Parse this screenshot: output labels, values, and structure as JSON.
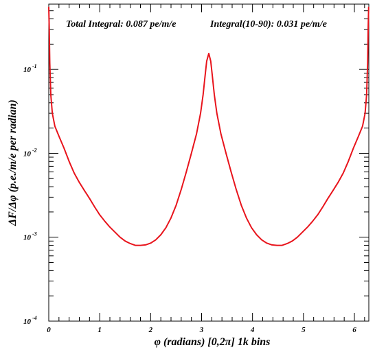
{
  "chart_data": {
    "type": "line",
    "annotations": {
      "total_integral": "Total Integral: 0.087 pe/m/e",
      "integral_10_90": "Integral(10-90): 0.031 pe/m/e"
    },
    "xlabel": "φ (radians) [0,2π] 1k bins",
    "ylabel": "ΔF/Δφ (p.e./m/e per radian)",
    "xlim": [
      0,
      6.2832
    ],
    "ylim": [
      0.0001,
      0.6
    ],
    "yscale": "log",
    "x_ticks": [
      {
        "value": 0,
        "label": "0"
      },
      {
        "value": 1,
        "label": "1"
      },
      {
        "value": 2,
        "label": "2"
      },
      {
        "value": 3,
        "label": "3"
      },
      {
        "value": 4,
        "label": "4"
      },
      {
        "value": 5,
        "label": "5"
      },
      {
        "value": 6,
        "label": "6"
      }
    ],
    "y_ticks": [
      {
        "value": 0.0001,
        "base": "10",
        "exp": "-4"
      },
      {
        "value": 0.001,
        "base": "10",
        "exp": "-3"
      },
      {
        "value": 0.01,
        "base": "10",
        "exp": "-2"
      },
      {
        "value": 0.1,
        "base": "10",
        "exp": "-1"
      }
    ],
    "grid": false,
    "colors": {
      "line": "#e8141c",
      "frame": "#000000"
    },
    "series": [
      {
        "points": [
          [
            0.0,
            0.55
          ],
          [
            0.01,
            0.3
          ],
          [
            0.02,
            0.12
          ],
          [
            0.04,
            0.05
          ],
          [
            0.07,
            0.03
          ],
          [
            0.12,
            0.021
          ],
          [
            0.2,
            0.016
          ],
          [
            0.3,
            0.0115
          ],
          [
            0.4,
            0.008
          ],
          [
            0.5,
            0.0058
          ],
          [
            0.6,
            0.0045
          ],
          [
            0.7,
            0.0036
          ],
          [
            0.8,
            0.0029
          ],
          [
            0.9,
            0.0023
          ],
          [
            1.0,
            0.00185
          ],
          [
            1.1,
            0.00155
          ],
          [
            1.2,
            0.00132
          ],
          [
            1.3,
            0.00115
          ],
          [
            1.4,
            0.001
          ],
          [
            1.5,
            0.0009
          ],
          [
            1.6,
            0.00084
          ],
          [
            1.7,
            0.0008
          ],
          [
            1.8,
            0.0008
          ],
          [
            1.9,
            0.00081
          ],
          [
            2.0,
            0.00085
          ],
          [
            2.1,
            0.00093
          ],
          [
            2.2,
            0.00107
          ],
          [
            2.3,
            0.0013
          ],
          [
            2.4,
            0.0017
          ],
          [
            2.5,
            0.0024
          ],
          [
            2.6,
            0.0037
          ],
          [
            2.7,
            0.006
          ],
          [
            2.8,
            0.01
          ],
          [
            2.9,
            0.017
          ],
          [
            2.98,
            0.03
          ],
          [
            3.03,
            0.05
          ],
          [
            3.07,
            0.085
          ],
          [
            3.1,
            0.125
          ],
          [
            3.1416,
            0.155
          ],
          [
            3.18,
            0.125
          ],
          [
            3.21,
            0.085
          ],
          [
            3.25,
            0.05
          ],
          [
            3.3,
            0.03
          ],
          [
            3.38,
            0.017
          ],
          [
            3.48,
            0.01
          ],
          [
            3.58,
            0.006
          ],
          [
            3.68,
            0.0037
          ],
          [
            3.78,
            0.0024
          ],
          [
            3.88,
            0.0017
          ],
          [
            3.98,
            0.0013
          ],
          [
            4.08,
            0.00107
          ],
          [
            4.18,
            0.00093
          ],
          [
            4.28,
            0.00085
          ],
          [
            4.38,
            0.00081
          ],
          [
            4.48,
            0.0008
          ],
          [
            4.58,
            0.0008
          ],
          [
            4.68,
            0.00084
          ],
          [
            4.78,
            0.0009
          ],
          [
            4.88,
            0.001
          ],
          [
            4.98,
            0.00115
          ],
          [
            5.08,
            0.00132
          ],
          [
            5.18,
            0.00155
          ],
          [
            5.28,
            0.00185
          ],
          [
            5.38,
            0.0023
          ],
          [
            5.48,
            0.0029
          ],
          [
            5.58,
            0.0036
          ],
          [
            5.68,
            0.0045
          ],
          [
            5.78,
            0.0058
          ],
          [
            5.88,
            0.008
          ],
          [
            5.98,
            0.0115
          ],
          [
            6.08,
            0.016
          ],
          [
            6.16,
            0.021
          ],
          [
            6.21,
            0.03
          ],
          [
            6.24,
            0.05
          ],
          [
            6.26,
            0.12
          ],
          [
            6.27,
            0.3
          ],
          [
            6.28,
            0.55
          ]
        ]
      }
    ]
  }
}
